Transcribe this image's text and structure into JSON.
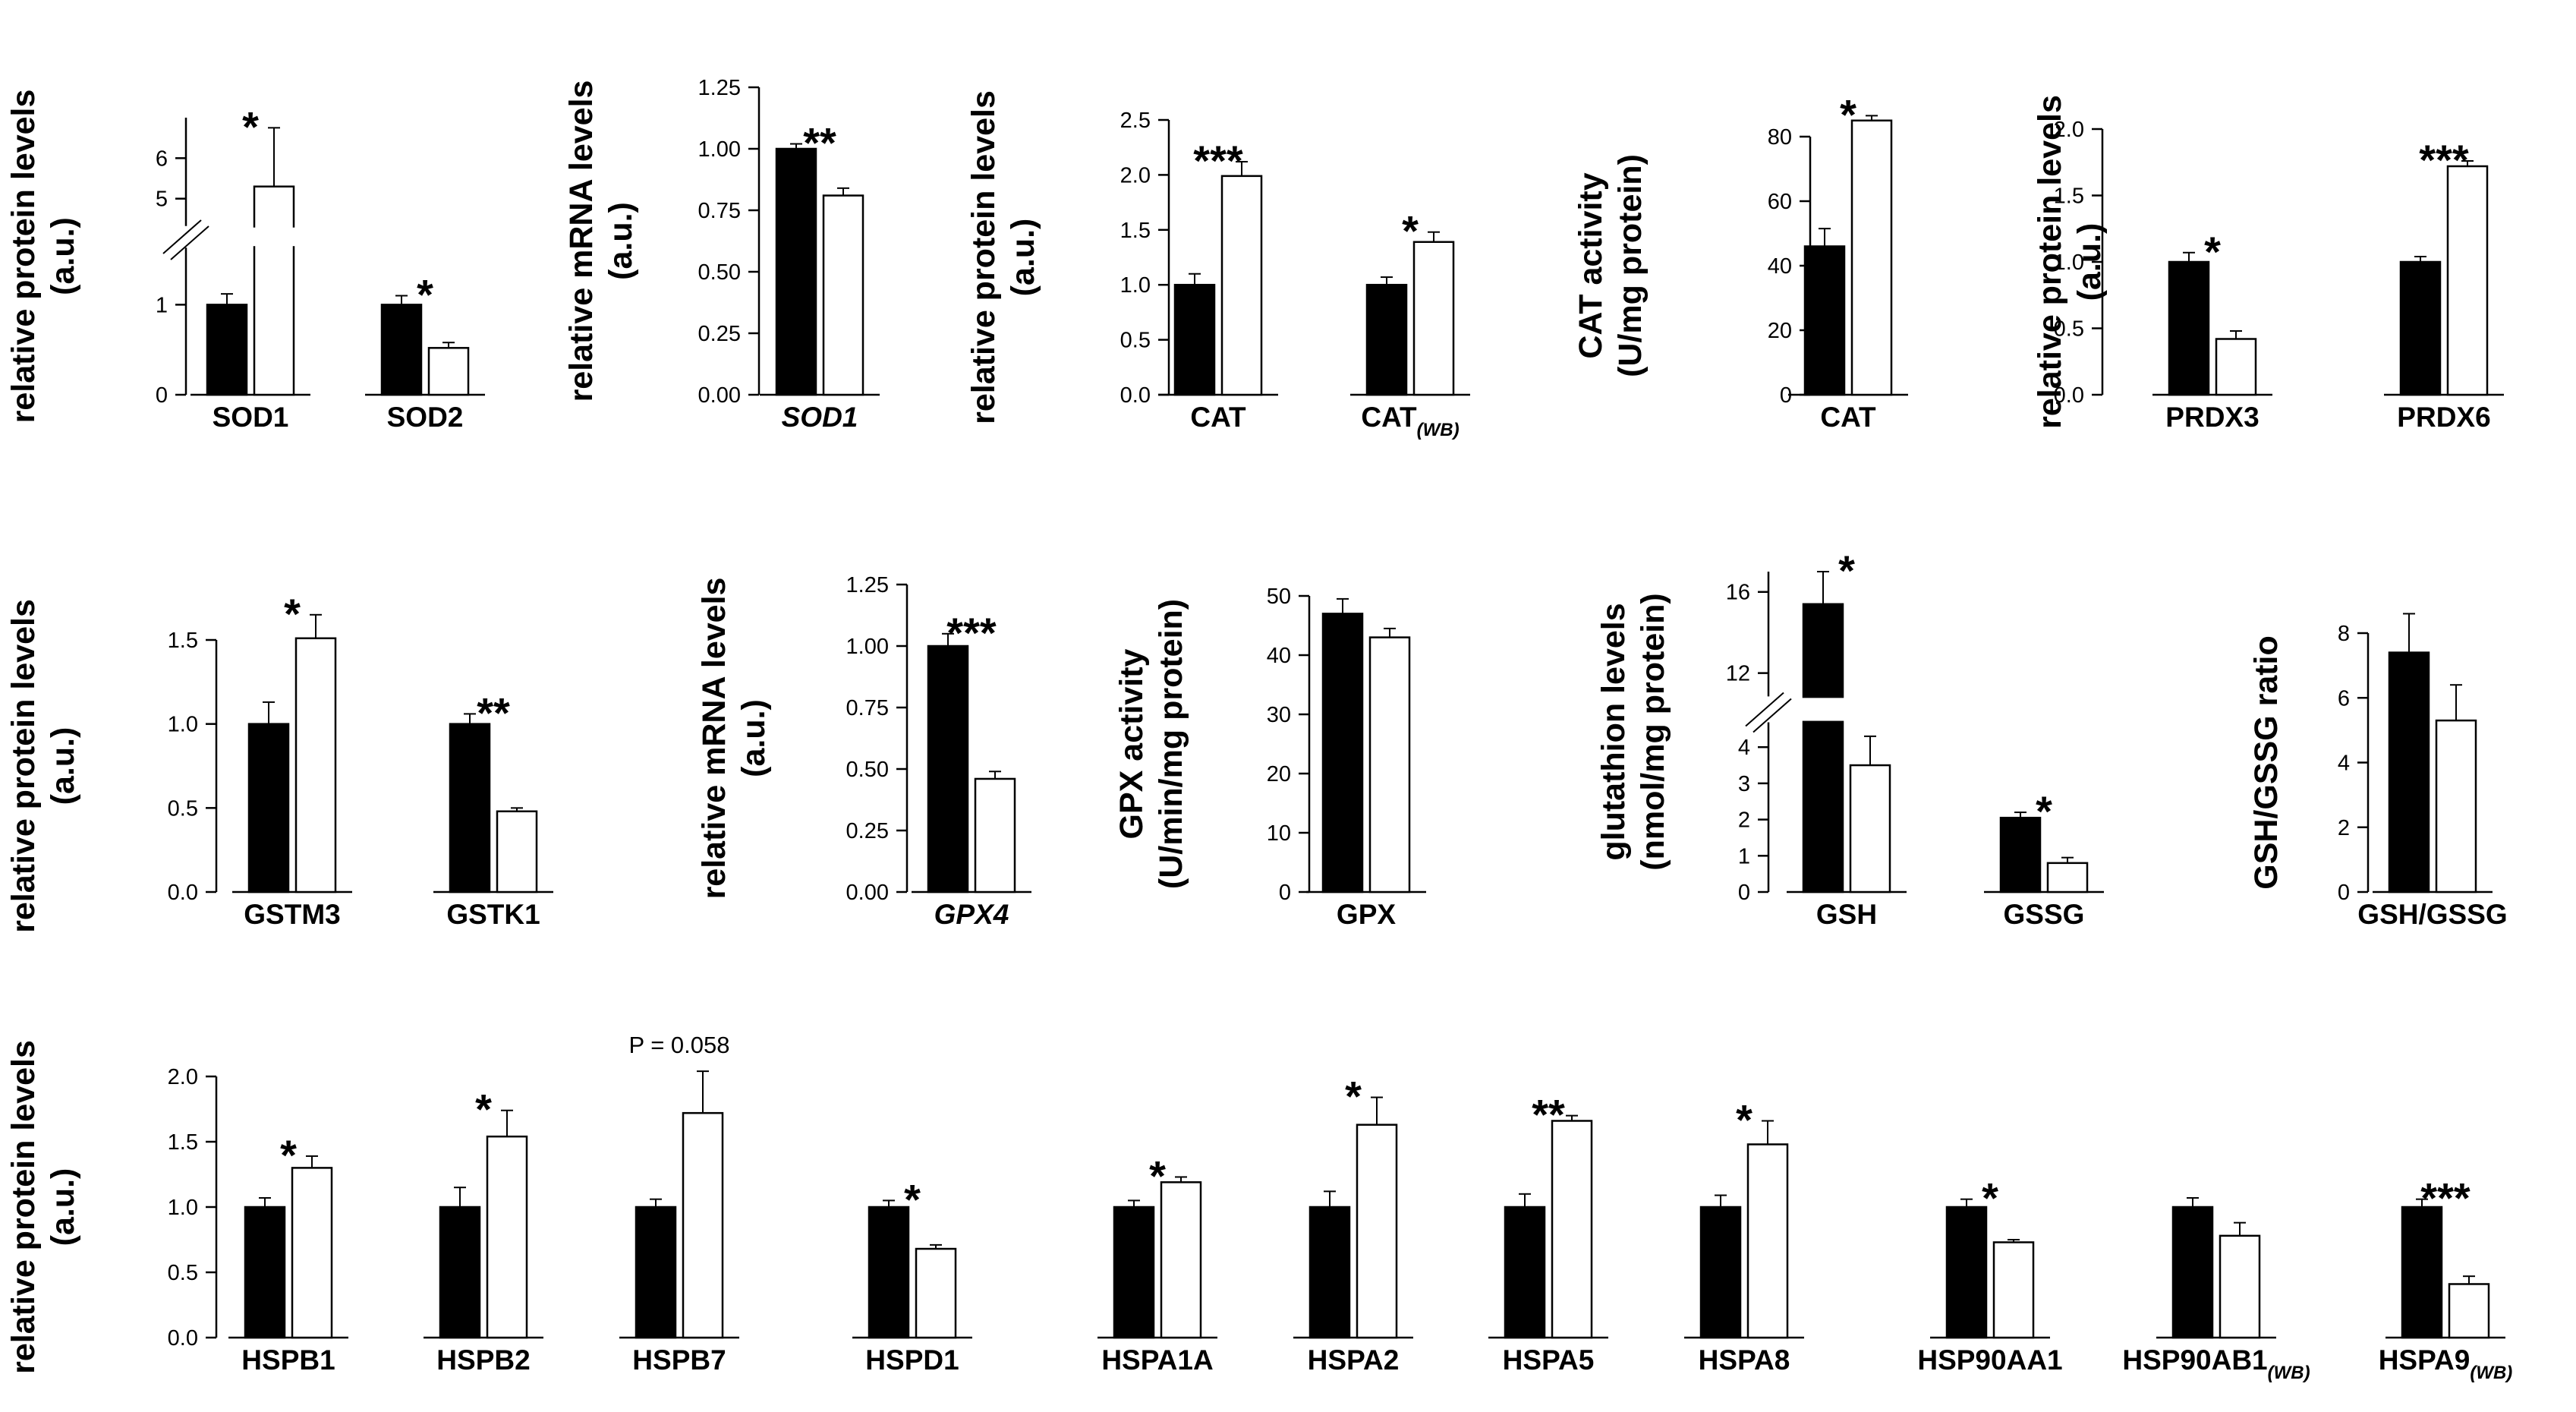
{
  "colors": {
    "control": "#000000",
    "treated": "#ffffff",
    "stroke": "#000000"
  },
  "chart_data": [
    {
      "id": "sod-protein",
      "type": "bar",
      "ylabel": [
        "relative protein levels",
        "(a.u.)"
      ],
      "ylim": [
        0,
        7
      ],
      "axis_break": [
        1.6,
        4.4
      ],
      "yticks": [
        {
          "v": 0,
          "label": "0"
        },
        {
          "v": 1,
          "label": "1"
        },
        {
          "v": 5,
          "label": "5"
        },
        {
          "v": 6,
          "label": "6"
        }
      ],
      "groups": [
        {
          "label": "SOD1",
          "control": 1.0,
          "control_err": 0.12,
          "treated": 5.3,
          "treated_err": 1.45,
          "sig": "*"
        },
        {
          "label": "SOD2",
          "control": 1.0,
          "control_err": 0.1,
          "treated": 0.52,
          "treated_err": 0.06,
          "sig": "*"
        }
      ]
    },
    {
      "id": "sod1-mrna",
      "type": "bar",
      "ylabel": [
        "relative mRNA levels",
        "(a.u.)"
      ],
      "ylim": [
        0,
        1.25
      ],
      "yticks": [
        {
          "v": 0,
          "label": "0.00"
        },
        {
          "v": 0.25,
          "label": "0.25"
        },
        {
          "v": 0.5,
          "label": "0.50"
        },
        {
          "v": 0.75,
          "label": "0.75"
        },
        {
          "v": 1.0,
          "label": "1.00"
        },
        {
          "v": 1.25,
          "label": "1.25"
        }
      ],
      "groups": [
        {
          "label": "SOD1",
          "italic": true,
          "control": 1.0,
          "control_err": 0.02,
          "treated": 0.81,
          "treated_err": 0.03,
          "sig": "**"
        }
      ]
    },
    {
      "id": "cat-protein",
      "type": "bar",
      "ylabel": [
        "relative protein levels",
        "(a.u.)"
      ],
      "ylim": [
        0,
        2.5
      ],
      "yticks": [
        {
          "v": 0,
          "label": "0.0"
        },
        {
          "v": 0.5,
          "label": "0.5"
        },
        {
          "v": 1.0,
          "label": "1.0"
        },
        {
          "v": 1.5,
          "label": "1.5"
        },
        {
          "v": 2.0,
          "label": "2.0"
        },
        {
          "v": 2.5,
          "label": "2.5"
        }
      ],
      "groups": [
        {
          "label": "CAT",
          "control": 1.0,
          "control_err": 0.1,
          "treated": 1.99,
          "treated_err": 0.13,
          "sig": "***"
        },
        {
          "label": "CAT",
          "sublabel": "(WB)",
          "control": 1.0,
          "control_err": 0.07,
          "treated": 1.39,
          "treated_err": 0.09,
          "sig": "*"
        }
      ]
    },
    {
      "id": "cat-activity",
      "type": "bar",
      "ylabel": [
        "CAT activity",
        "(U/mg protein)"
      ],
      "ylim": [
        0,
        80
      ],
      "yticks": [
        {
          "v": 0,
          "label": "0"
        },
        {
          "v": 20,
          "label": "20"
        },
        {
          "v": 40,
          "label": "40"
        },
        {
          "v": 60,
          "label": "60"
        },
        {
          "v": 80,
          "label": "80"
        }
      ],
      "groups": [
        {
          "label": "CAT",
          "control": 46,
          "control_err": 5.5,
          "treated": 85,
          "treated_err": 1.5,
          "sig": "*"
        }
      ]
    },
    {
      "id": "prdx",
      "type": "bar",
      "ylabel": [
        "relative protein levels",
        "(a.u.)"
      ],
      "ylim": [
        0,
        2.0
      ],
      "yticks": [
        {
          "v": 0,
          "label": "0.0"
        },
        {
          "v": 0.5,
          "label": "0.5"
        },
        {
          "v": 1.0,
          "label": "1.0"
        },
        {
          "v": 1.5,
          "label": "1.5"
        },
        {
          "v": 2.0,
          "label": "2.0"
        }
      ],
      "groups": [
        {
          "label": "PRDX3",
          "control": 1.0,
          "control_err": 0.07,
          "treated": 0.42,
          "treated_err": 0.06,
          "sig": "*"
        },
        {
          "label": "PRDX6",
          "control": 1.0,
          "control_err": 0.04,
          "treated": 1.72,
          "treated_err": 0.04,
          "sig": "***"
        }
      ]
    },
    {
      "id": "gst",
      "type": "bar",
      "ylabel": [
        "relative protein levels",
        "(a.u.)"
      ],
      "ylim": [
        0,
        1.5
      ],
      "yticks": [
        {
          "v": 0,
          "label": "0.0"
        },
        {
          "v": 0.5,
          "label": "0.5"
        },
        {
          "v": 1.0,
          "label": "1.0"
        },
        {
          "v": 1.5,
          "label": "1.5"
        }
      ],
      "groups": [
        {
          "label": "GSTM3",
          "control": 1.0,
          "control_err": 0.13,
          "treated": 1.51,
          "treated_err": 0.14,
          "sig": "*"
        },
        {
          "label": "GSTK1",
          "control": 1.0,
          "control_err": 0.06,
          "treated": 0.48,
          "treated_err": 0.02,
          "sig": "**"
        }
      ]
    },
    {
      "id": "gpx4-mrna",
      "type": "bar",
      "ylabel": [
        "relative mRNA levels",
        "(a.u.)"
      ],
      "ylim": [
        0,
        1.25
      ],
      "yticks": [
        {
          "v": 0,
          "label": "0.00"
        },
        {
          "v": 0.25,
          "label": "0.25"
        },
        {
          "v": 0.5,
          "label": "0.50"
        },
        {
          "v": 0.75,
          "label": "0.75"
        },
        {
          "v": 1.0,
          "label": "1.00"
        },
        {
          "v": 1.25,
          "label": "1.25"
        }
      ],
      "groups": [
        {
          "label": "GPX4",
          "italic": true,
          "control": 1.0,
          "control_err": 0.05,
          "treated": 0.46,
          "treated_err": 0.03,
          "sig": "***"
        }
      ]
    },
    {
      "id": "gpx-activity",
      "type": "bar",
      "ylabel": [
        "GPX activity",
        "(U/min/mg protein)"
      ],
      "ylim": [
        0,
        50
      ],
      "yticks": [
        {
          "v": 0,
          "label": "0"
        },
        {
          "v": 10,
          "label": "10"
        },
        {
          "v": 20,
          "label": "20"
        },
        {
          "v": 30,
          "label": "30"
        },
        {
          "v": 40,
          "label": "40"
        },
        {
          "v": 50,
          "label": "50"
        }
      ],
      "groups": [
        {
          "label": "GPX",
          "control": 47,
          "control_err": 2.5,
          "treated": 43,
          "treated_err": 1.5,
          "sig": ""
        }
      ]
    },
    {
      "id": "glutathion",
      "type": "bar",
      "ylabel": [
        "glutathion levels",
        "(nmol/mg protein)"
      ],
      "ylim": [
        0,
        17
      ],
      "axis_break": [
        4.6,
        11
      ],
      "yticks": [
        {
          "v": 0,
          "label": "0"
        },
        {
          "v": 1,
          "label": "1"
        },
        {
          "v": 2,
          "label": "2"
        },
        {
          "v": 3,
          "label": "3"
        },
        {
          "v": 4,
          "label": "4"
        },
        {
          "v": 12,
          "label": "12"
        },
        {
          "v": 16,
          "label": "16"
        }
      ],
      "groups": [
        {
          "label": "GSH",
          "control": 15.4,
          "control_err": 1.6,
          "treated": 3.5,
          "treated_err": 0.8,
          "sig": "*"
        },
        {
          "label": "GSSG",
          "control": 2.05,
          "control_err": 0.15,
          "treated": 0.8,
          "treated_err": 0.15,
          "sig": "*"
        }
      ]
    },
    {
      "id": "gsh-gssg",
      "type": "bar",
      "ylabel": [
        "GSH/GSSG ratio"
      ],
      "ylim": [
        0,
        8
      ],
      "yticks": [
        {
          "v": 0,
          "label": "0"
        },
        {
          "v": 2,
          "label": "2"
        },
        {
          "v": 4,
          "label": "4"
        },
        {
          "v": 6,
          "label": "6"
        },
        {
          "v": 8,
          "label": "8"
        }
      ],
      "groups": [
        {
          "label": "GSH/GSSG",
          "control": 7.4,
          "control_err": 1.2,
          "treated": 5.3,
          "treated_err": 1.1,
          "sig": ""
        }
      ]
    },
    {
      "id": "hsp",
      "type": "bar",
      "ylabel": [
        "relative protein levels",
        "(a.u.)"
      ],
      "ylim": [
        0,
        2.0
      ],
      "yticks": [
        {
          "v": 0,
          "label": "0.0"
        },
        {
          "v": 0.5,
          "label": "0.5"
        },
        {
          "v": 1.0,
          "label": "1.0"
        },
        {
          "v": 1.5,
          "label": "1.5"
        },
        {
          "v": 2.0,
          "label": "2.0"
        }
      ],
      "groups": [
        {
          "label": "HSPB1",
          "control": 1.0,
          "control_err": 0.07,
          "treated": 1.3,
          "treated_err": 0.09,
          "sig": "*"
        },
        {
          "label": "HSPB2",
          "control": 1.0,
          "control_err": 0.15,
          "treated": 1.54,
          "treated_err": 0.2,
          "sig": "*"
        },
        {
          "label": "HSPB7",
          "control": 1.0,
          "control_err": 0.06,
          "treated": 1.72,
          "treated_err": 0.32,
          "sig": "",
          "note": "P = 0.058"
        },
        {
          "label": "HSPD1",
          "control": 1.0,
          "control_err": 0.05,
          "treated": 0.68,
          "treated_err": 0.03,
          "sig": "*"
        },
        {
          "label": "HSPA1A",
          "control": 1.0,
          "control_err": 0.05,
          "treated": 1.19,
          "treated_err": 0.04,
          "sig": "*"
        },
        {
          "label": "HSPA2",
          "control": 1.0,
          "control_err": 0.12,
          "treated": 1.63,
          "treated_err": 0.21,
          "sig": "*"
        },
        {
          "label": "HSPA5",
          "control": 1.0,
          "control_err": 0.1,
          "treated": 1.66,
          "treated_err": 0.04,
          "sig": "**"
        },
        {
          "label": "HSPA8",
          "control": 1.0,
          "control_err": 0.09,
          "treated": 1.48,
          "treated_err": 0.18,
          "sig": "*"
        },
        {
          "label": "HSP90AA1",
          "control": 1.0,
          "control_err": 0.06,
          "treated": 0.73,
          "treated_err": 0.02,
          "sig": "*"
        },
        {
          "label": "HSP90AB1",
          "sublabel": "(WB)",
          "control": 1.0,
          "control_err": 0.07,
          "treated": 0.78,
          "treated_err": 0.1,
          "sig": ""
        },
        {
          "label": "HSPA9",
          "sublabel": "(WB)",
          "control": 1.0,
          "control_err": 0.06,
          "treated": 0.41,
          "treated_err": 0.06,
          "sig": "***"
        }
      ]
    }
  ]
}
